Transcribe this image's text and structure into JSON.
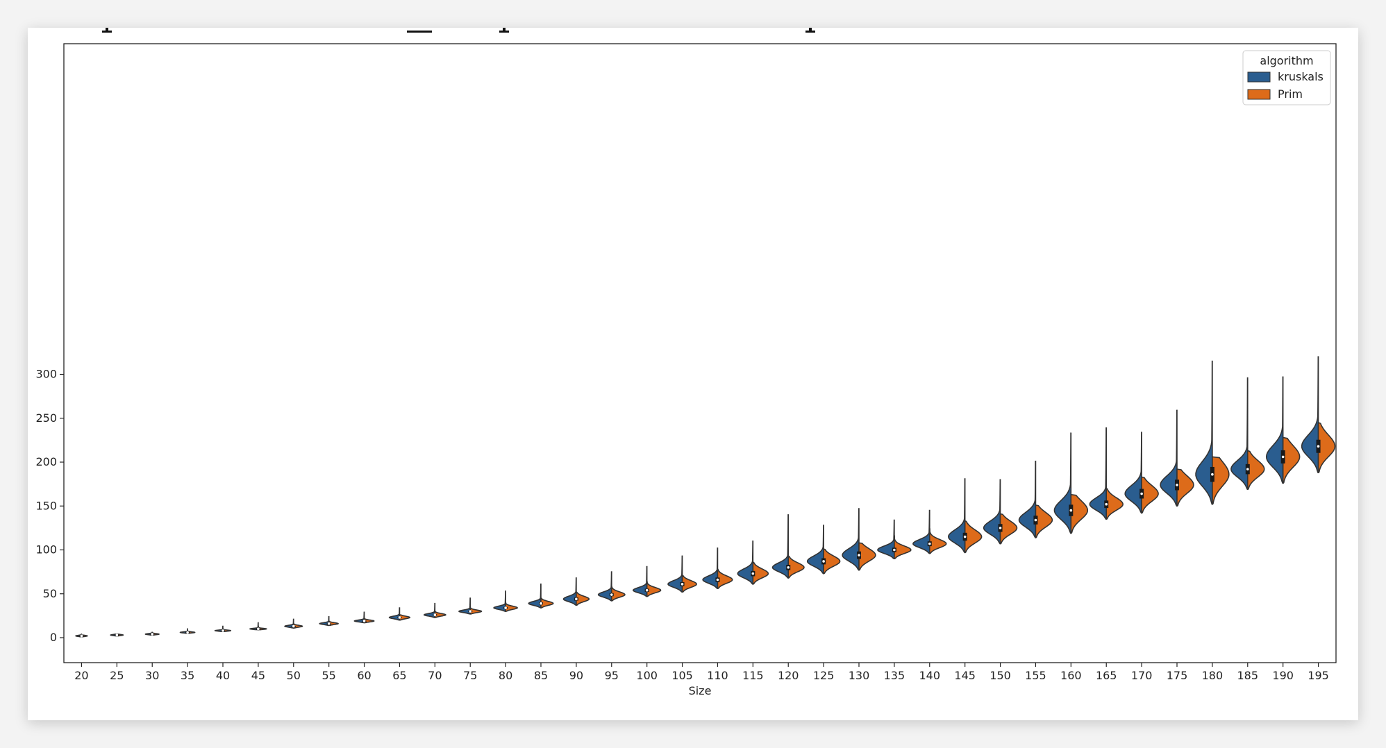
{
  "chart_data": {
    "type": "violin",
    "split": true,
    "title": "",
    "xlabel": "Size",
    "ylabel": "",
    "ylim": [
      -15,
      340
    ],
    "yticks": [
      0,
      50,
      100,
      150,
      200,
      250,
      300
    ],
    "grid": false,
    "legend": {
      "title": "algorithm",
      "placement": "top-right",
      "entries": [
        "kruskals",
        "Prim"
      ]
    },
    "colors": {
      "kruskals": "#2a5d8f",
      "Prim": "#dd6b1a",
      "outline": "#333333"
    },
    "categories": [
      "20",
      "25",
      "30",
      "35",
      "40",
      "45",
      "50",
      "55",
      "60",
      "65",
      "70",
      "75",
      "80",
      "85",
      "90",
      "95",
      "100",
      "105",
      "110",
      "115",
      "120",
      "125",
      "130",
      "135",
      "140",
      "145",
      "150",
      "155",
      "160",
      "165",
      "170",
      "175",
      "180",
      "185",
      "190",
      "195"
    ],
    "series": [
      {
        "name": "kruskals",
        "median": [
          2,
          3,
          4,
          6,
          8,
          10,
          13,
          16,
          19,
          23,
          26,
          30,
          34,
          39,
          44,
          49,
          54,
          61,
          66,
          73,
          80,
          87,
          94,
          100,
          107,
          115,
          125,
          134,
          145,
          152,
          164,
          174,
          186,
          192,
          206,
          218
        ],
        "min": [
          1,
          2,
          3,
          5,
          7,
          9,
          11,
          14,
          17,
          20,
          23,
          27,
          30,
          34,
          37,
          42,
          47,
          52,
          56,
          61,
          68,
          73,
          77,
          90,
          96,
          97,
          107,
          114,
          119,
          135,
          142,
          150,
          152,
          169,
          176,
          188
        ],
        "max": [
          4,
          4,
          6,
          10,
          13,
          17,
          21,
          24,
          29,
          34,
          39,
          45,
          53,
          61,
          68,
          75,
          81,
          93,
          102,
          110,
          140,
          128,
          147,
          134,
          145,
          181,
          180,
          201,
          233,
          239,
          234,
          259,
          315,
          296,
          297,
          320
        ]
      },
      {
        "name": "Prim",
        "median": [
          2,
          3,
          4,
          6,
          8,
          10,
          13,
          16,
          19,
          23,
          26,
          30,
          34,
          39,
          44,
          49,
          54,
          61,
          66,
          73,
          80,
          87,
          94,
          100,
          107,
          115,
          125,
          134,
          145,
          152,
          164,
          174,
          186,
          192,
          206,
          218
        ],
        "min": [
          1,
          2,
          3,
          5,
          7,
          9,
          11,
          14,
          17,
          20,
          23,
          27,
          30,
          34,
          37,
          42,
          47,
          52,
          56,
          61,
          68,
          73,
          77,
          90,
          96,
          97,
          107,
          114,
          119,
          135,
          142,
          150,
          152,
          169,
          176,
          188
        ],
        "max": [
          3,
          4,
          6,
          8,
          10,
          13,
          16,
          19,
          22,
          26,
          30,
          35,
          40,
          45,
          52,
          58,
          64,
          71,
          78,
          86,
          93,
          101,
          108,
          116,
          124,
          133,
          141,
          151,
          163,
          170,
          183,
          192,
          206,
          213,
          228,
          245
        ]
      }
    ]
  }
}
